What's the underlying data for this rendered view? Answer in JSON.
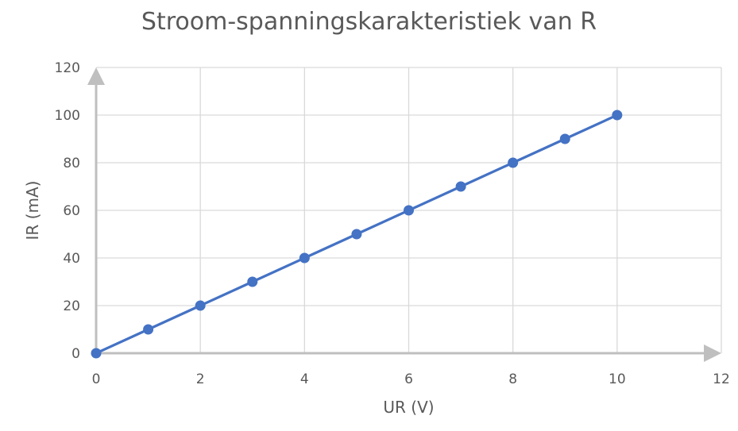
{
  "chart_data": {
    "type": "scatter",
    "title": "Stroom-spanningskarakteristiek van R",
    "xlabel": "UR (V)",
    "ylabel": "IR (mA)",
    "xlim": [
      0,
      12
    ],
    "ylim": [
      0,
      120
    ],
    "xticks": [
      "0",
      "2",
      "4",
      "6",
      "8",
      "10",
      "12"
    ],
    "yticks": [
      "0",
      "20",
      "40",
      "60",
      "80",
      "100",
      "120"
    ],
    "grid": true,
    "legend": "none",
    "connected_with_line": true,
    "axis_arrows": true,
    "colors": {
      "series": "#4472C4",
      "grid": "#D9D9D9",
      "axis": "#BFBFBF",
      "text": "#595959"
    },
    "series": [
      {
        "x": [
          0,
          1,
          2,
          3,
          4,
          5,
          6,
          7,
          8,
          9,
          10
        ],
        "y": [
          0,
          10,
          20,
          30,
          40,
          50,
          60,
          70,
          80,
          90,
          100
        ]
      }
    ]
  }
}
